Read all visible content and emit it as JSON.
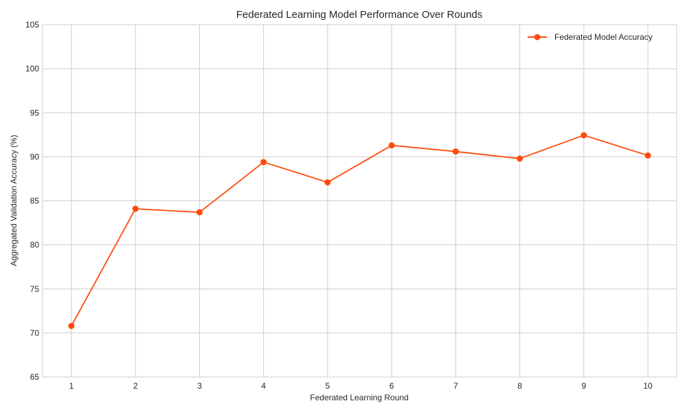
{
  "chart_data": {
    "type": "line",
    "title": "Federated Learning Model Performance Over Rounds",
    "xlabel": "Federated Learning Round",
    "ylabel": "Aggregated Validation Accuracy (%)",
    "x": [
      1,
      2,
      3,
      4,
      5,
      6,
      7,
      8,
      9,
      10
    ],
    "x_tick_labels": [
      "1",
      "2",
      "3",
      "4",
      "5",
      "6",
      "7",
      "8",
      "9",
      "10"
    ],
    "y_ticks": [
      65,
      70,
      75,
      80,
      85,
      90,
      95,
      100,
      105
    ],
    "y_tick_labels": [
      "65",
      "70",
      "75",
      "80",
      "85",
      "90",
      "95",
      "100",
      "105"
    ],
    "xlim": [
      0.55,
      10.45
    ],
    "ylim": [
      65,
      105
    ],
    "grid": true,
    "legend_position": "top-right",
    "series": [
      {
        "name": "Federated Model Accuracy",
        "color": "#ff4a0a",
        "marker": "circle",
        "values": [
          70.8,
          84.1,
          83.7,
          89.4,
          87.1,
          91.3,
          90.6,
          89.8,
          92.45,
          90.15
        ]
      }
    ]
  }
}
